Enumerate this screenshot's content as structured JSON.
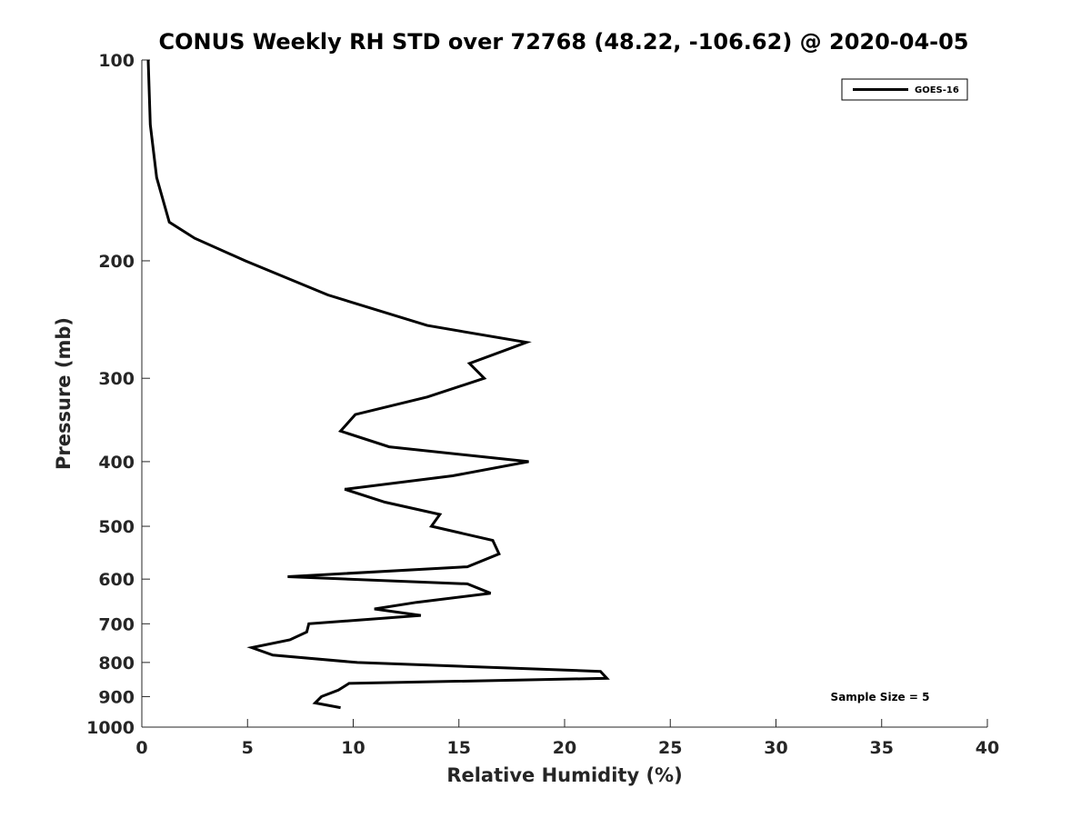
{
  "chart_data": {
    "type": "line",
    "title": "CONUS Weekly RH STD over 72768 (48.22, -106.62) @ 2020-04-05",
    "xlabel": "Relative Humidity (%)",
    "ylabel": "Pressure (mb)",
    "xlim": [
      0,
      40
    ],
    "ylim": [
      100,
      1000
    ],
    "y_scale": "log",
    "y_reversed": true,
    "grid": false,
    "x_ticks": [
      "0",
      "5",
      "10",
      "15",
      "20",
      "25",
      "30",
      "35",
      "40"
    ],
    "y_ticks": [
      "100",
      "200",
      "300",
      "400",
      "500",
      "600",
      "700",
      "800",
      "900",
      "1000"
    ],
    "legend": {
      "position": "top-right",
      "entries": [
        "GOES-16"
      ]
    },
    "annotation": "Sample Size = 5",
    "series": [
      {
        "name": "GOES-16",
        "color": "#000000",
        "points": [
          [
            0.3,
            100
          ],
          [
            0.4,
            125
          ],
          [
            0.7,
            150
          ],
          [
            1.3,
            175
          ],
          [
            2.5,
            185
          ],
          [
            4.9,
            200
          ],
          [
            8.8,
            225
          ],
          [
            13.5,
            250
          ],
          [
            18.2,
            265
          ],
          [
            15.5,
            285
          ],
          [
            16.2,
            300
          ],
          [
            13.5,
            320
          ],
          [
            10.1,
            340
          ],
          [
            9.4,
            360
          ],
          [
            11.7,
            380
          ],
          [
            18.3,
            400
          ],
          [
            14.7,
            420
          ],
          [
            9.6,
            440
          ],
          [
            11.5,
            460
          ],
          [
            14.1,
            480
          ],
          [
            13.7,
            500
          ],
          [
            16.6,
            525
          ],
          [
            16.9,
            550
          ],
          [
            15.4,
            575
          ],
          [
            6.9,
            595
          ],
          [
            15.4,
            610
          ],
          [
            16.5,
            630
          ],
          [
            13.0,
            650
          ],
          [
            11.0,
            665
          ],
          [
            13.2,
            680
          ],
          [
            7.9,
            700
          ],
          [
            7.8,
            720
          ],
          [
            7.0,
            740
          ],
          [
            5.2,
            760
          ],
          [
            6.2,
            780
          ],
          [
            10.2,
            800
          ],
          [
            21.7,
            825
          ],
          [
            22.0,
            845
          ],
          [
            9.8,
            860
          ],
          [
            9.3,
            880
          ],
          [
            8.5,
            900
          ],
          [
            8.2,
            920
          ],
          [
            9.4,
            935
          ]
        ]
      }
    ]
  }
}
